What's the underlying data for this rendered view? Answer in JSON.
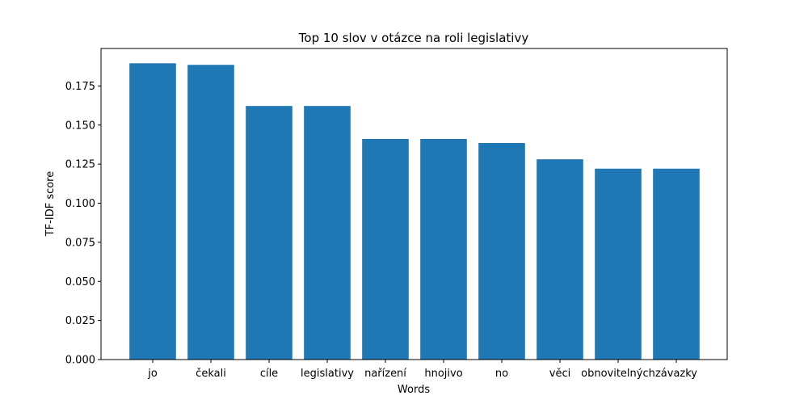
{
  "chart_data": {
    "type": "bar",
    "title": "Top 10 slov v otázce na roli legislativy",
    "xlabel": "Words",
    "ylabel": "TF-IDF score",
    "categories": [
      "jo",
      "čekali",
      "cíle",
      "legislativy",
      "nařízení",
      "hnojivo",
      "no",
      "věci",
      "obnovitelných",
      "závazky"
    ],
    "values": [
      0.1895,
      0.1885,
      0.1622,
      0.1622,
      0.1411,
      0.1411,
      0.1385,
      0.1281,
      0.1221,
      0.1221
    ],
    "ylim": [
      0,
      0.1895
    ],
    "yticks": [
      "0.000",
      "0.025",
      "0.050",
      "0.075",
      "0.100",
      "0.125",
      "0.150",
      "0.175"
    ],
    "ytick_values": [
      0,
      0.025,
      0.05,
      0.075,
      0.1,
      0.125,
      0.15,
      0.175
    ],
    "bar_color": "#1f77b4",
    "grid": false,
    "legend": "none"
  }
}
